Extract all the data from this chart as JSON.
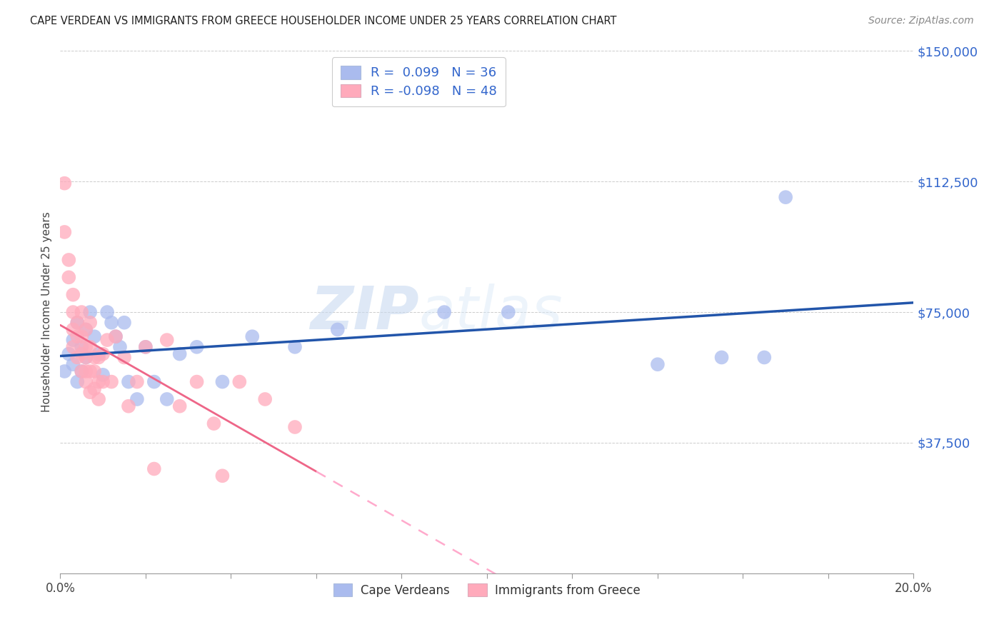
{
  "title": "CAPE VERDEAN VS IMMIGRANTS FROM GREECE HOUSEHOLDER INCOME UNDER 25 YEARS CORRELATION CHART",
  "source": "Source: ZipAtlas.com",
  "ylabel": "Householder Income Under 25 years",
  "xlim": [
    0,
    0.2
  ],
  "ylim": [
    0,
    150000
  ],
  "yticks": [
    0,
    37500,
    75000,
    112500,
    150000
  ],
  "xticks": [
    0.0,
    0.02,
    0.04,
    0.06,
    0.08,
    0.1,
    0.12,
    0.14,
    0.16,
    0.18,
    0.2
  ],
  "watermark_zip": "ZIP",
  "watermark_atlas": "atlas",
  "blue_color": "#aabbee",
  "pink_color": "#ffaabb",
  "blue_line_color": "#2255aa",
  "pink_line_color": "#ee6688",
  "pink_dash_color": "#ffaacc",
  "legend1_label": "Cape Verdeans",
  "legend2_label": "Immigrants from Greece",
  "blue_scatter_x": [
    0.001,
    0.002,
    0.003,
    0.003,
    0.004,
    0.004,
    0.005,
    0.005,
    0.006,
    0.006,
    0.007,
    0.008,
    0.009,
    0.01,
    0.011,
    0.012,
    0.013,
    0.014,
    0.015,
    0.016,
    0.018,
    0.02,
    0.022,
    0.025,
    0.028,
    0.032,
    0.038,
    0.045,
    0.055,
    0.065,
    0.09,
    0.105,
    0.14,
    0.155,
    0.165,
    0.17
  ],
  "blue_scatter_y": [
    58000,
    63000,
    67000,
    60000,
    72000,
    55000,
    65000,
    58000,
    70000,
    62000,
    75000,
    68000,
    63000,
    57000,
    75000,
    72000,
    68000,
    65000,
    72000,
    55000,
    50000,
    65000,
    55000,
    50000,
    63000,
    65000,
    55000,
    68000,
    65000,
    70000,
    75000,
    75000,
    60000,
    62000,
    62000,
    108000
  ],
  "pink_scatter_x": [
    0.001,
    0.001,
    0.002,
    0.002,
    0.003,
    0.003,
    0.003,
    0.003,
    0.004,
    0.004,
    0.004,
    0.005,
    0.005,
    0.005,
    0.005,
    0.006,
    0.006,
    0.006,
    0.006,
    0.006,
    0.007,
    0.007,
    0.007,
    0.007,
    0.008,
    0.008,
    0.008,
    0.009,
    0.009,
    0.009,
    0.01,
    0.01,
    0.011,
    0.012,
    0.013,
    0.015,
    0.016,
    0.018,
    0.02,
    0.022,
    0.025,
    0.028,
    0.032,
    0.036,
    0.038,
    0.042,
    0.048,
    0.055
  ],
  "pink_scatter_y": [
    112000,
    98000,
    90000,
    85000,
    80000,
    75000,
    70000,
    65000,
    72000,
    68000,
    62000,
    75000,
    68000,
    63000,
    58000,
    70000,
    65000,
    62000,
    58000,
    55000,
    72000,
    65000,
    58000,
    52000,
    62000,
    58000,
    53000,
    55000,
    62000,
    50000,
    55000,
    63000,
    67000,
    55000,
    68000,
    62000,
    48000,
    55000,
    65000,
    30000,
    67000,
    48000,
    55000,
    43000,
    28000,
    55000,
    50000,
    42000
  ],
  "background_color": "#ffffff",
  "grid_color": "#cccccc"
}
